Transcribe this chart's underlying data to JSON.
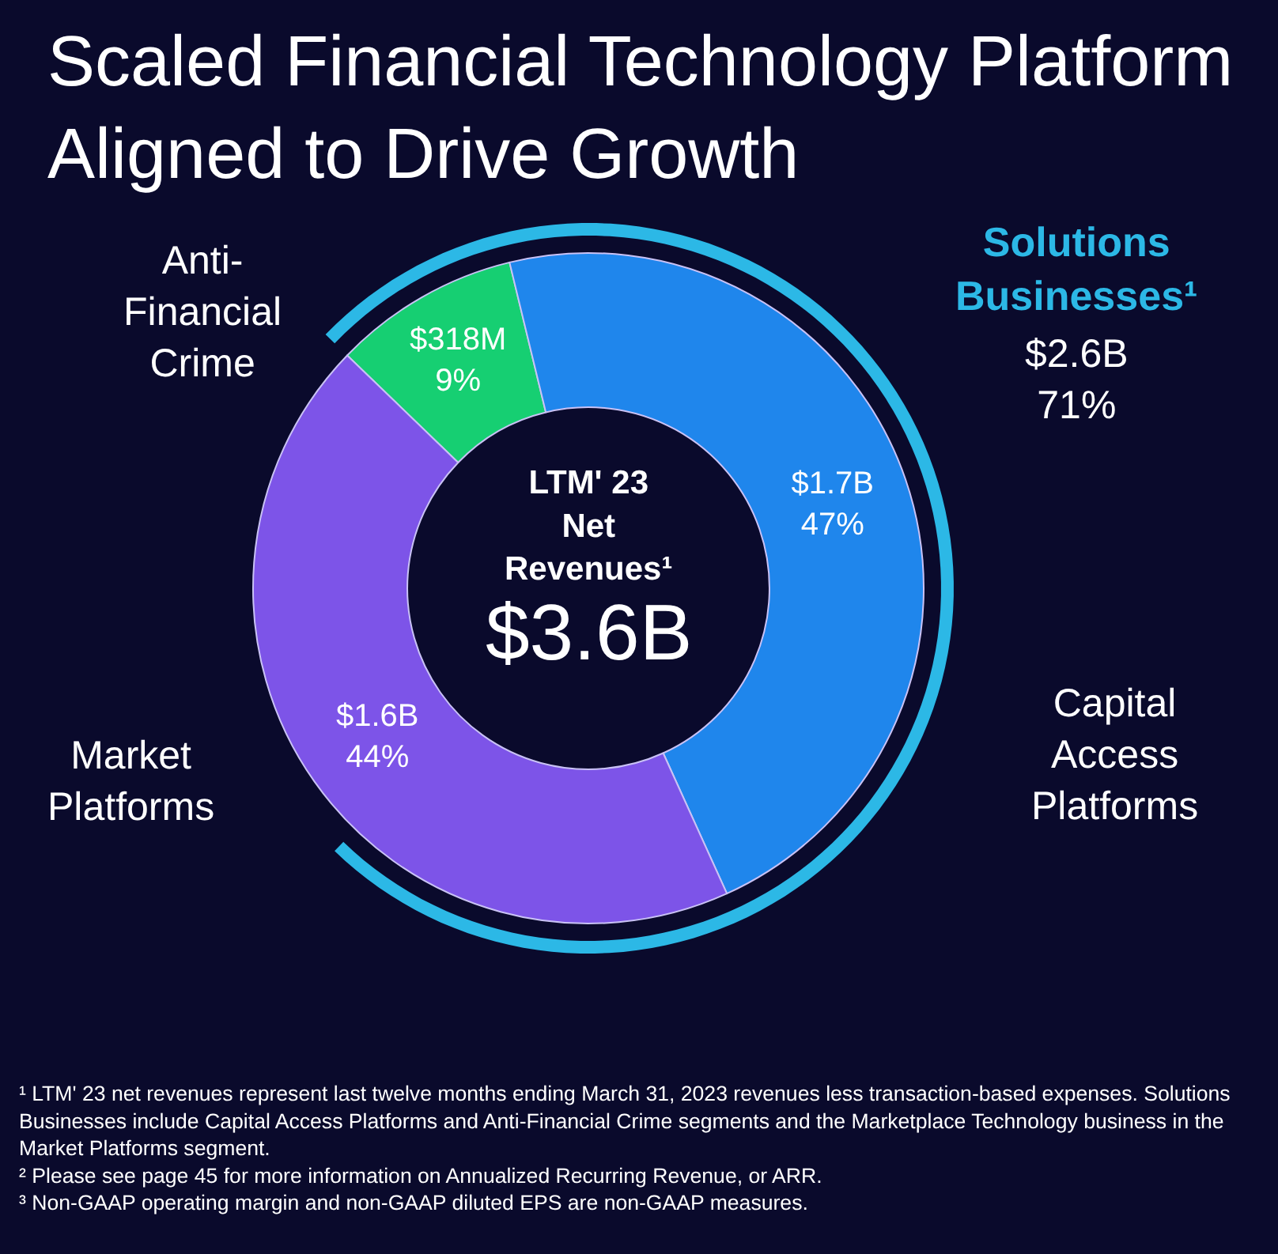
{
  "chart_data": {
    "type": "donut",
    "title": "Scaled Financial Technology Platform\nAligned to Drive Growth",
    "categories": [
      "Anti-\nFinancial\nCrime",
      "Capital\nAccess\nPlatforms",
      "Market\nPlatforms"
    ],
    "values": [
      9,
      47,
      44
    ],
    "colors": [
      "#16cf72",
      "#1f86ec",
      "#7d54e8"
    ],
    "value_labels": [
      "$318M\n9%",
      "$1.7B\n47%",
      "$1.6B\n44%"
    ],
    "annotations": [
      "LTM' 23\nNet\nRevenues¹",
      "$3.6B",
      "Solutions\nBusinesses¹",
      "$2.6B\n71%",
      "¹ LTM' 23 net revenues represent last twelve months ending March 31, 2023 revenues less transaction-based expenses. Solutions Businesses include Capital Access Platforms and Anti-Financial Crime segments and the Marketplace Technology business in the Market Platforms segment.",
      "² Please see page 45 for more information on Annualized Recurring Revenue, or ARR.",
      "³ Non-GAAP operating margin and non-GAAP diluted EPS are non-GAAP measures."
    ],
    "legend": false
  }
}
